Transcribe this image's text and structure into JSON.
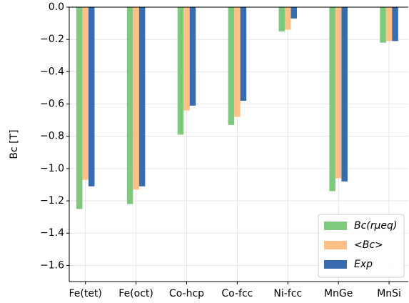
{
  "chart_data": {
    "type": "bar",
    "y_label": "Bc [T]",
    "categories": [
      "Fe(tet)",
      "Fe(oct)",
      "Co-hcp",
      "Co-fcc",
      "Ni-fcc",
      "MnGe",
      "MnSi"
    ],
    "series": [
      {
        "name": "Bc(rμeq)",
        "color": "#7fc97f",
        "values": [
          -1.25,
          -1.22,
          -0.79,
          -0.73,
          -0.15,
          -1.14,
          -0.22
        ]
      },
      {
        "name": "<Bc>",
        "color": "#fdc086",
        "values": [
          -1.07,
          -1.13,
          -0.64,
          -0.68,
          -0.14,
          -1.06,
          -0.21
        ]
      },
      {
        "name": "Exp",
        "color": "#386cb0",
        "values": [
          -1.11,
          -1.11,
          -0.61,
          -0.58,
          -0.07,
          -1.08,
          -0.21
        ]
      }
    ],
    "ylim": [
      -1.7,
      0
    ],
    "yticks": [
      {
        "value": 0,
        "label": "0.0"
      },
      {
        "value": -0.2,
        "label": "−0.2"
      },
      {
        "value": -0.4,
        "label": "−0.4"
      },
      {
        "value": -0.6,
        "label": "−0.6"
      },
      {
        "value": -0.8,
        "label": "−0.8"
      },
      {
        "value": -1.0,
        "label": "−1.0"
      },
      {
        "value": -1.2,
        "label": "−1.2"
      },
      {
        "value": -1.4,
        "label": "−1.4"
      },
      {
        "value": -1.6,
        "label": "−1.6"
      }
    ],
    "grid": true,
    "legend": "lower right"
  }
}
